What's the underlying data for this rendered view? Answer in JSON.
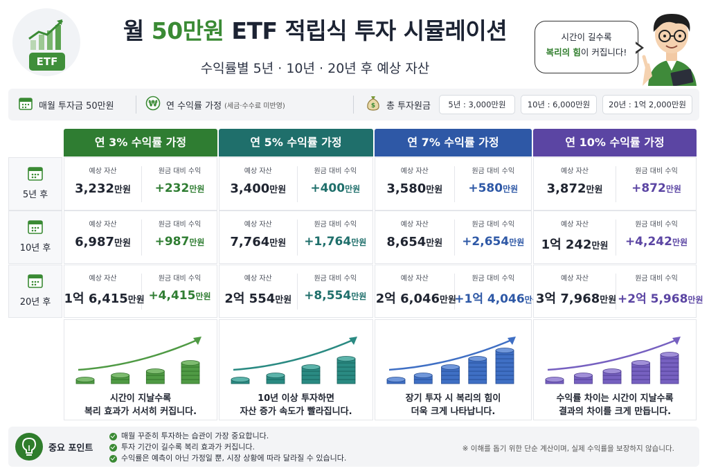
{
  "header": {
    "logo_text": "ETF",
    "title_prefix": "월 ",
    "title_highlight": "50만원",
    "title_suffix": " ETF 적립식 투자 시뮬레이션",
    "subtitle": "수익률별 5년 · 10년 · 20년 후 예상 자산",
    "bubble_line1": "시간이 길수록",
    "bubble_bold": "복리의 힘",
    "bubble_line2_suffix": "이 커집니다!"
  },
  "infobar": {
    "monthly": "매월 투자금 50만원",
    "rate_label": "연 수익률 가정",
    "rate_note": "(세금·수수료 미반영)",
    "total_label": "총 투자원금",
    "totals": [
      "5년 : 3,000만원",
      "10년 : 6,000만원",
      "20년 : 1억 2,000만원"
    ]
  },
  "table": {
    "columns": [
      {
        "title": "연 3% 수익률 가정",
        "color": "#2f7d32"
      },
      {
        "title": "연 5% 수익률 가정",
        "color": "#1f6f6b"
      },
      {
        "title": "연 7% 수익률 가정",
        "color": "#2e58a6"
      },
      {
        "title": "연 10% 수익률 가정",
        "color": "#5b45a3"
      }
    ],
    "asset_header": "예상 자산",
    "gain_header": "원금 대비 수익",
    "rows": [
      {
        "label": "5년 후",
        "cells": [
          {
            "asset": "3,232",
            "asset_unit": "만원",
            "gain": "+232",
            "gain_unit": "만원"
          },
          {
            "asset": "3,400",
            "asset_unit": "만원",
            "gain": "+400",
            "gain_unit": "만원"
          },
          {
            "asset": "3,580",
            "asset_unit": "만원",
            "gain": "+580",
            "gain_unit": "만원"
          },
          {
            "asset": "3,872",
            "asset_unit": "만원",
            "gain": "+872",
            "gain_unit": "만원"
          }
        ]
      },
      {
        "label": "10년 후",
        "cells": [
          {
            "asset": "6,987",
            "asset_unit": "만원",
            "gain": "+987",
            "gain_unit": "만원"
          },
          {
            "asset": "7,764",
            "asset_unit": "만원",
            "gain": "+1,764",
            "gain_unit": "만원"
          },
          {
            "asset": "8,654",
            "asset_unit": "만원",
            "gain": "+2,654",
            "gain_unit": "만원"
          },
          {
            "asset": "1억 242",
            "asset_unit": "만원",
            "gain": "+4,242",
            "gain_unit": "만원"
          }
        ]
      },
      {
        "label": "20년 후",
        "cells": [
          {
            "asset": "1억 6,415",
            "asset_unit": "만원",
            "gain": "+4,415",
            "gain_unit": "만원"
          },
          {
            "asset": "2억 554",
            "asset_unit": "만원",
            "gain": "+8,554",
            "gain_unit": "만원"
          },
          {
            "asset": "2억 6,046",
            "asset_unit": "만원",
            "gain": "+1억 4,046",
            "gain_unit": "만원"
          },
          {
            "asset": "3억 7,968",
            "asset_unit": "만원",
            "gain": "+2억 5,968",
            "gain_unit": "만원"
          }
        ]
      }
    ],
    "captions": [
      [
        "시간이 지날수록",
        "복리 효과가 서서히 커집니다."
      ],
      [
        "10년 이상 투자하면",
        "자산 증가 속도가 빨라집니다."
      ],
      [
        "장기 투자 시 복리의 힘이",
        "더욱 크게 나타납니다."
      ],
      [
        "수익률 차이는 시간이 지날수록",
        "결과의 차이를 크게 만듭니다."
      ]
    ],
    "coin_colors": [
      {
        "main": "#4f9a44",
        "dark": "#2f6e28",
        "light": "#7dbb6f"
      },
      {
        "main": "#2a8a82",
        "dark": "#17605a",
        "light": "#5cb3aa"
      },
      {
        "main": "#3f6fc4",
        "dark": "#254c92",
        "light": "#7097da"
      },
      {
        "main": "#7660c0",
        "dark": "#4d3b8f",
        "light": "#a08fd8"
      }
    ]
  },
  "bottom": {
    "title": "중요 포인트",
    "points": [
      "매월 꾸준히 투자하는 습관이 가장 중요합니다.",
      "투자 기간이 길수록 복리 효과가 커집니다.",
      "수익률은 예측이 아닌 가정일 뿐, 시장 상황에 따라 달라질 수 있습니다."
    ],
    "note": "※ 이해를 돕기 위한 단순 계산이며, 실제 수익률을 보장하지 않습니다."
  }
}
